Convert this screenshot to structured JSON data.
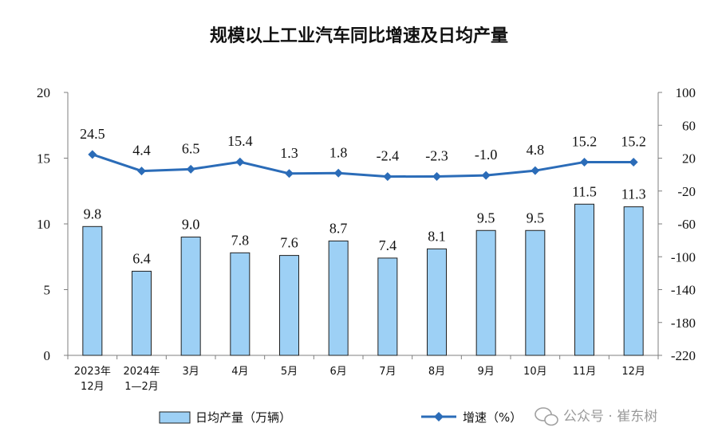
{
  "chart_data": {
    "type": "bar+line",
    "title": "规模以上工业汽车同比增速及日均产量",
    "categories": [
      [
        "2023年",
        "12月"
      ],
      [
        "2024年",
        "1—2月"
      ],
      [
        "3月"
      ],
      [
        "4月"
      ],
      [
        "5月"
      ],
      [
        "6月"
      ],
      [
        "7月"
      ],
      [
        "8月"
      ],
      [
        "9月"
      ],
      [
        "10月"
      ],
      [
        "11月"
      ],
      [
        "12月"
      ]
    ],
    "series": [
      {
        "name": "日均产量（万辆）",
        "type": "bar",
        "axis": "left",
        "values": [
          9.8,
          6.4,
          9.0,
          7.8,
          7.6,
          8.7,
          7.4,
          8.1,
          9.5,
          9.5,
          11.5,
          11.3
        ],
        "labels": [
          "9.8",
          "6.4",
          "9.0",
          "7.8",
          "7.6",
          "8.7",
          "7.4",
          "8.1",
          "9.5",
          "9.5",
          "11.5",
          "11.3"
        ]
      },
      {
        "name": "增速（%）",
        "type": "line",
        "axis": "right",
        "values": [
          24.5,
          4.4,
          6.5,
          15.4,
          1.3,
          1.8,
          -2.4,
          -2.3,
          -1.0,
          4.8,
          15.2,
          15.2
        ],
        "labels": [
          "24.5",
          "4.4",
          "6.5",
          "15.4",
          "1.3",
          "1.8",
          "-2.4",
          "-2.3",
          "-1.0",
          "4.8",
          "15.2",
          "15.2"
        ]
      }
    ],
    "y_left": {
      "min": 0,
      "max": 20,
      "ticks": [
        "0",
        "5",
        "10",
        "15",
        "20"
      ]
    },
    "y_right": {
      "min": -220,
      "max": 100,
      "ticks": [
        "-220",
        "-180",
        "-140",
        "-100",
        "-60",
        "-20",
        "20",
        "60",
        "100"
      ]
    },
    "grid": false,
    "legend": "bottom",
    "colors": {
      "bar_fill": "#9dd0f5",
      "bar_stroke": "#1f1f1f",
      "line": "#2b6cb8",
      "axis": "#7f7f7f"
    }
  },
  "watermark": {
    "text": "公众号 · 崔东树",
    "icon": "wechat-icon"
  }
}
